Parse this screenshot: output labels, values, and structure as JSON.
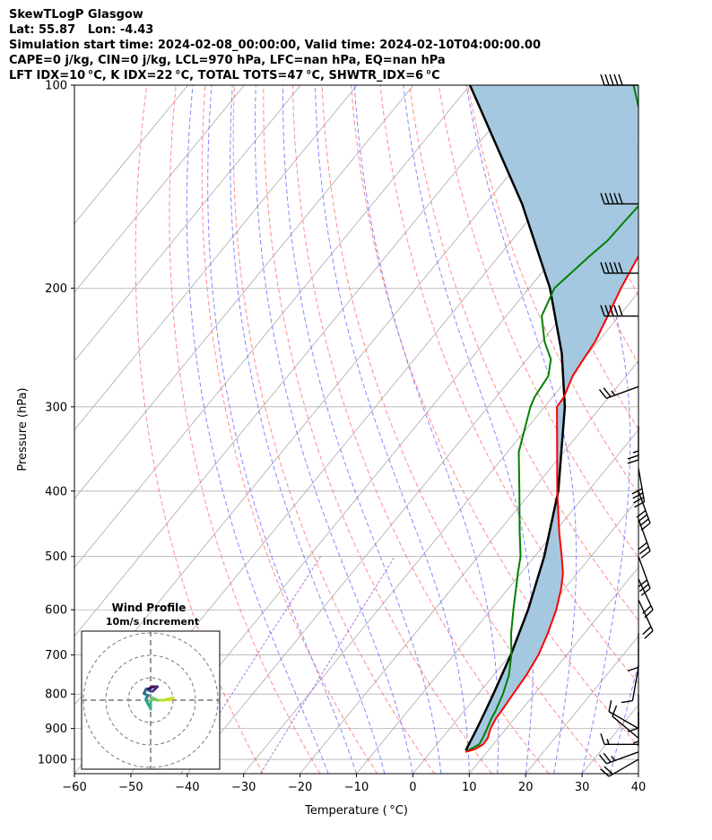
{
  "header": {
    "line1": "SkewTLogP Glasgow",
    "line2": "Lat: 55.87   Lon: -4.43",
    "line3": "Simulation start time: 2024-02-08_00:00:00, Valid time: 2024-02-10T04:00:00.00",
    "line4": "CAPE=0 j/kg, CIN=0 j/kg, LCL=970 hPa, LFC=nan hPa, EQ=nan hPa",
    "line5": "LFT IDX=10 °C, K IDX=22 °C, TOTAL TOTS=47 °C, SHWTR_IDX=6 °C"
  },
  "colors": {
    "temperature": "#ff0000",
    "dewpoint": "#008000",
    "parcel": "#000000",
    "shading": "#a0c5df",
    "dry_adiabats": "#ff6666",
    "moist_adiabats": "#6a6aff",
    "mixing_ratio": "#a050d0",
    "isotherms": "#aaaaaa"
  },
  "chart_data": [
    {
      "type": "line",
      "subtype": "skew-t log-p",
      "xlabel": "Temperature ( °C)",
      "ylabel": "Pressure (hPa)",
      "xlim": [
        -60,
        40
      ],
      "ylim": [
        1050,
        100
      ],
      "yscale": "log",
      "grid": true,
      "x_ticks": [
        "−60",
        "−50",
        "−40",
        "−30",
        "−20",
        "−10",
        "0",
        "10",
        "20",
        "30",
        "40"
      ],
      "y_ticks": [
        "100",
        "200",
        "300",
        "400",
        "500",
        "600",
        "700",
        "800",
        "900",
        "1000"
      ],
      "series": [
        {
          "name": "Temperature",
          "pressure": [
            975,
            965,
            950,
            930,
            900,
            870,
            850,
            800,
            750,
            700,
            650,
            600,
            560,
            530,
            500,
            460,
            400,
            350,
            300,
            290,
            270,
            255,
            240,
            220,
            200,
            180,
            160,
            150,
            140,
            130,
            120,
            110,
            100
          ],
          "values": [
            6.2,
            7.5,
            8.2,
            8.1,
            7.2,
            6.7,
            6.6,
            6.2,
            5.8,
            5.0,
            3.5,
            1.6,
            -0.5,
            -2.5,
            -5.2,
            -9.2,
            -15.5,
            -21.2,
            -27.8,
            -28.0,
            -29.5,
            -30.0,
            -30.5,
            -32.0,
            -33.7,
            -35.2,
            -36.2,
            -37.0,
            -37.6,
            -38.8,
            -40.5,
            -42.5,
            -45.0
          ]
        },
        {
          "name": "Dewpoint",
          "pressure": [
            975,
            950,
            930,
            900,
            870,
            850,
            800,
            750,
            700,
            650,
            600,
            560,
            530,
            500,
            460,
            400,
            350,
            300,
            290,
            270,
            255,
            240,
            220,
            200,
            180,
            170,
            160,
            150,
            140,
            130,
            120,
            110,
            100
          ],
          "values": [
            6.2,
            7.5,
            7.2,
            6.6,
            5.9,
            5.6,
            4.4,
            2.7,
            0.2,
            -3.0,
            -6.0,
            -8.5,
            -10.5,
            -12.5,
            -16.2,
            -22.2,
            -28.0,
            -32.5,
            -33.2,
            -33.8,
            -35.8,
            -39.5,
            -43.7,
            -45.5,
            -44.0,
            -43.0,
            -42.8,
            -42.5,
            -43.5,
            -46.7,
            -51.2,
            -55.8,
            -61.0
          ]
        },
        {
          "name": "Parcel profile",
          "pressure": [
            970,
            900,
            850,
            800,
            700,
            600,
            500,
            400,
            300,
            250,
            200,
            150,
            100
          ],
          "values": [
            6.0,
            4.8,
            3.8,
            2.7,
            0.1,
            -3.4,
            -8.3,
            -15.3,
            -26.4,
            -34.7,
            -46.3,
            -63.5,
            -90.0
          ]
        }
      ],
      "wind_barbs": {
        "pressure": [
          100,
          150,
          190,
          220,
          280,
          320,
          370,
          400,
          440,
          500,
          540,
          580,
          650,
          730,
          800,
          850,
          900,
          930,
          950,
          975,
          1000
        ],
        "speed_kt": [
          50,
          50,
          50,
          50,
          25,
          25,
          40,
          40,
          30,
          30,
          20,
          20,
          10,
          10,
          10,
          5,
          10,
          10,
          15,
          25,
          20
        ],
        "direction_deg": [
          270,
          270,
          270,
          270,
          250,
          180,
          170,
          160,
          160,
          160,
          155,
          155,
          180,
          190,
          180,
          180,
          300,
          310,
          270,
          250,
          240
        ]
      }
    },
    {
      "type": "line",
      "subtype": "hodograph",
      "title": "Wind Profile",
      "subtitle": "10m/s increment",
      "rings_ms": [
        10,
        20,
        30
      ],
      "u": [
        8,
        9,
        10,
        6,
        3,
        1,
        0,
        0,
        -1,
        -2,
        -2,
        -1,
        -3,
        -2,
        0,
        1,
        2,
        3,
        1,
        -1
      ],
      "v": [
        0,
        0,
        1,
        0,
        0,
        1,
        -1,
        -4,
        -2,
        0,
        1,
        2,
        3,
        5,
        4,
        4,
        5,
        6,
        6,
        5
      ]
    }
  ]
}
